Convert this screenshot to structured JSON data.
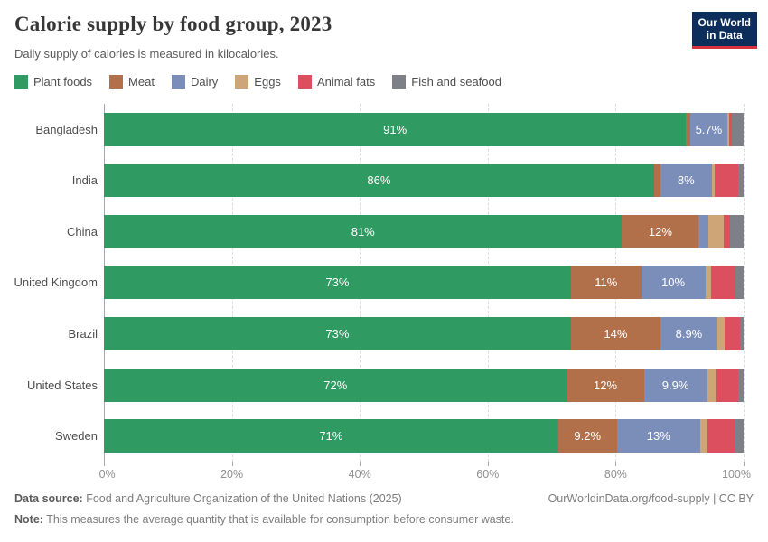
{
  "header": {
    "title": "Calorie supply by food group, 2023",
    "subtitle": "Daily supply of calories is measured in kilocalories.",
    "logo": {
      "line1": "Our World",
      "line2": "in Data",
      "bg_color": "#0d2e5a",
      "stripe_color": "#d8323d"
    }
  },
  "chart_data": {
    "type": "bar",
    "stacked": true,
    "orientation": "horizontal",
    "title": "Calorie supply by food group, 2023",
    "xlabel": "",
    "ylabel": "",
    "xlim": [
      0,
      100
    ],
    "grid": "dashed-vertical",
    "legend_position": "top",
    "categories": [
      "Bangladesh",
      "India",
      "China",
      "United Kingdom",
      "Brazil",
      "United States",
      "Sweden"
    ],
    "xticks": [
      "0%",
      "20%",
      "40%",
      "60%",
      "80%",
      "100%"
    ],
    "series": [
      {
        "name": "Plant foods",
        "color": "#2f9a62",
        "values": [
          91,
          86,
          81,
          73,
          73,
          72.4,
          71
        ],
        "labels": [
          "91%",
          "86%",
          "81%",
          "73%",
          "73%",
          "72%",
          "71%"
        ]
      },
      {
        "name": "Meat",
        "color": "#b1704a",
        "values": [
          0.7,
          1.0,
          12,
          11,
          14,
          12,
          9.2
        ],
        "labels": [
          "",
          "",
          "12%",
          "11%",
          "14%",
          "12%",
          "9.2%"
        ]
      },
      {
        "name": "Dairy",
        "color": "#7b8eba",
        "values": [
          5.7,
          8,
          1.5,
          10,
          8.9,
          9.9,
          13
        ],
        "labels": [
          "5.7%",
          "8%",
          "",
          "10%",
          "8.9%",
          "9.9%",
          "13%"
        ]
      },
      {
        "name": "Eggs",
        "color": "#cda577",
        "values": [
          0.4,
          0.5,
          2.4,
          0.9,
          1.1,
          1.5,
          1.1
        ],
        "labels": [
          "",
          "",
          "",
          "",
          "",
          "",
          ""
        ]
      },
      {
        "name": "Animal fats",
        "color": "#dc4f5f",
        "values": [
          0.4,
          3.6,
          1.0,
          3.8,
          2.4,
          3.3,
          4.3
        ],
        "labels": [
          "",
          "",
          "",
          "",
          "",
          "",
          ""
        ]
      },
      {
        "name": "Fish and seafood",
        "color": "#7d8087",
        "values": [
          1.8,
          0.9,
          2.1,
          1.3,
          0.6,
          0.9,
          1.4
        ],
        "labels": [
          "",
          "",
          "",
          "",
          "",
          "",
          ""
        ]
      }
    ]
  },
  "footer": {
    "datasource_label": "Data source:",
    "datasource_text": " Food and Agriculture Organization of the United Nations (2025)",
    "link": "OurWorldinData.org/food-supply | CC BY",
    "note_label": "Note:",
    "note_text": " This measures the average quantity that is available for consumption before consumer waste."
  }
}
